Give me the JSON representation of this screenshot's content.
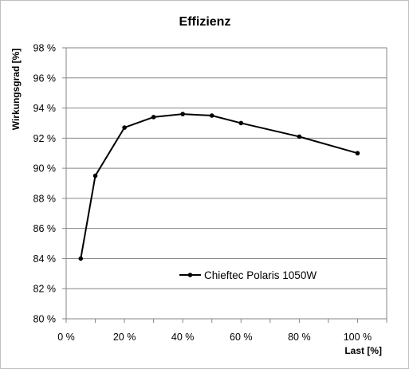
{
  "chart_data": {
    "type": "line",
    "title": "Effizienz",
    "xlabel": "Last [%]",
    "ylabel": "Wirkungsgrad [%]",
    "xlim": [
      0,
      110
    ],
    "ylim": [
      80,
      98
    ],
    "x_ticks": [
      "0 %",
      "20 %",
      "40 %",
      "60 %",
      "80 %",
      "100 %"
    ],
    "y_ticks": [
      "80 %",
      "82 %",
      "84 %",
      "86 %",
      "88 %",
      "90 %",
      "92 %",
      "94 %",
      "96 %",
      "98 %"
    ],
    "grid": "horizontal",
    "legend_position": "inside-bottom-center",
    "series": [
      {
        "name": "Chieftec Polaris 1050W",
        "color": "#000000",
        "x": [
          5,
          10,
          20,
          30,
          40,
          50,
          60,
          80,
          100
        ],
        "y": [
          84.0,
          89.5,
          92.7,
          93.4,
          93.6,
          93.5,
          93.0,
          92.1,
          91.0
        ]
      }
    ]
  }
}
